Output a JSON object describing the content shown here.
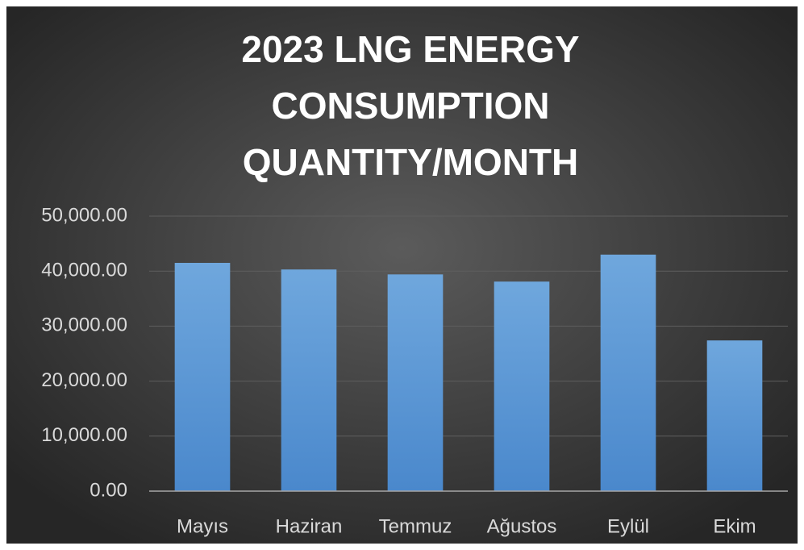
{
  "chart_data": {
    "type": "bar",
    "title": "2023 LNG ENERGY CONSUMPTION QUANTITY/MONTH",
    "categories": [
      "Mayıs",
      "Haziran",
      "Temmuz",
      "Ağustos",
      "Eylül",
      "Ekim"
    ],
    "values": [
      41500,
      40300,
      39400,
      38100,
      43000,
      27400
    ],
    "color": "#5b9bd5",
    "ylim": [
      0,
      50000
    ],
    "yticks": [
      {
        "value": 0,
        "label": "0.00"
      },
      {
        "value": 10000,
        "label": "10,000.00"
      },
      {
        "value": 20000,
        "label": "20,000.00"
      },
      {
        "value": 30000,
        "label": "30,000.00"
      },
      {
        "value": 40000,
        "label": "40,000.00"
      },
      {
        "value": 50000,
        "label": "50,000.00"
      }
    ],
    "grid": true
  }
}
